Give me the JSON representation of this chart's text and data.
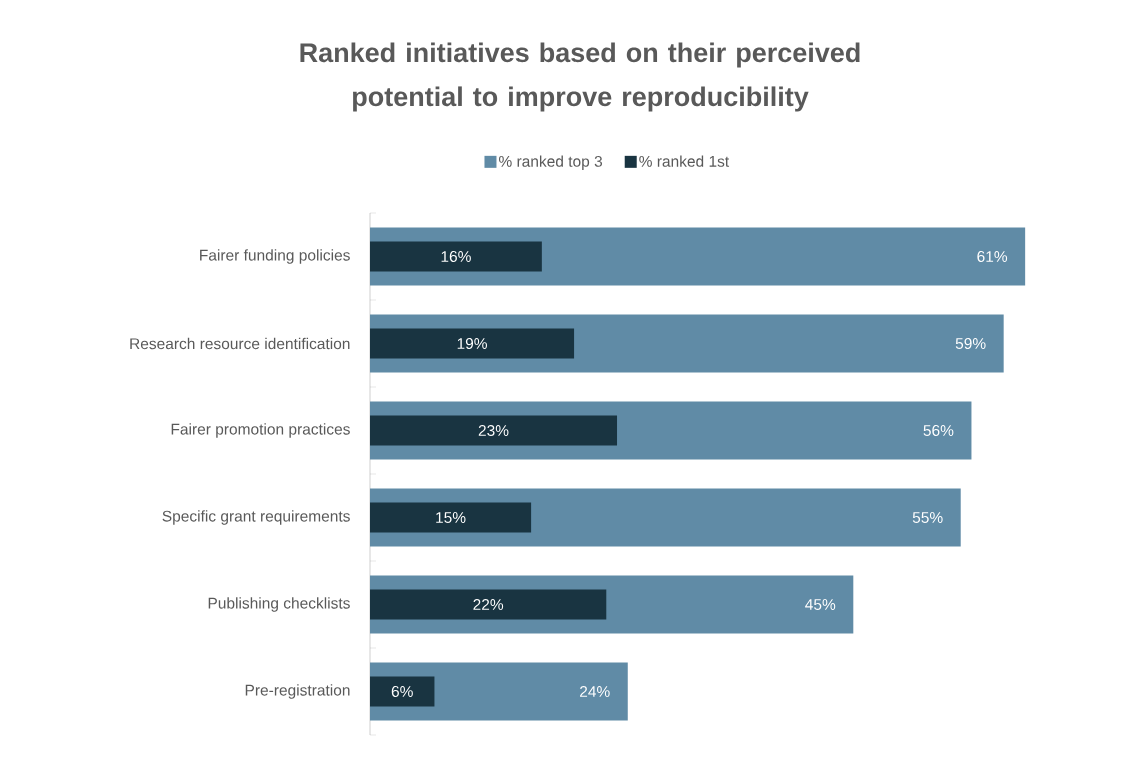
{
  "chart_data": {
    "type": "bar",
    "orientation": "horizontal",
    "title": "Ranked initiatives based on their perceived potential to improve reproducibility",
    "categories": [
      "Fairer funding policies",
      "Research resource identification",
      "Fairer promotion practices",
      "Specific grant requirements",
      "Publishing checklists",
      "Pre-registration"
    ],
    "series": [
      {
        "name": "% ranked top 3",
        "color": "#608ba6",
        "values": [
          61,
          59,
          56,
          55,
          45,
          24
        ],
        "value_labels": [
          "61%",
          "59%",
          "56%",
          "55%",
          "45%",
          "24%"
        ]
      },
      {
        "name": "% ranked 1st",
        "color": "#193441",
        "values": [
          16,
          19,
          23,
          15,
          22,
          6
        ],
        "value_labels": [
          "16%",
          "19%",
          "23%",
          "15%",
          "22%",
          "6%"
        ]
      }
    ],
    "legend": "top"
  }
}
